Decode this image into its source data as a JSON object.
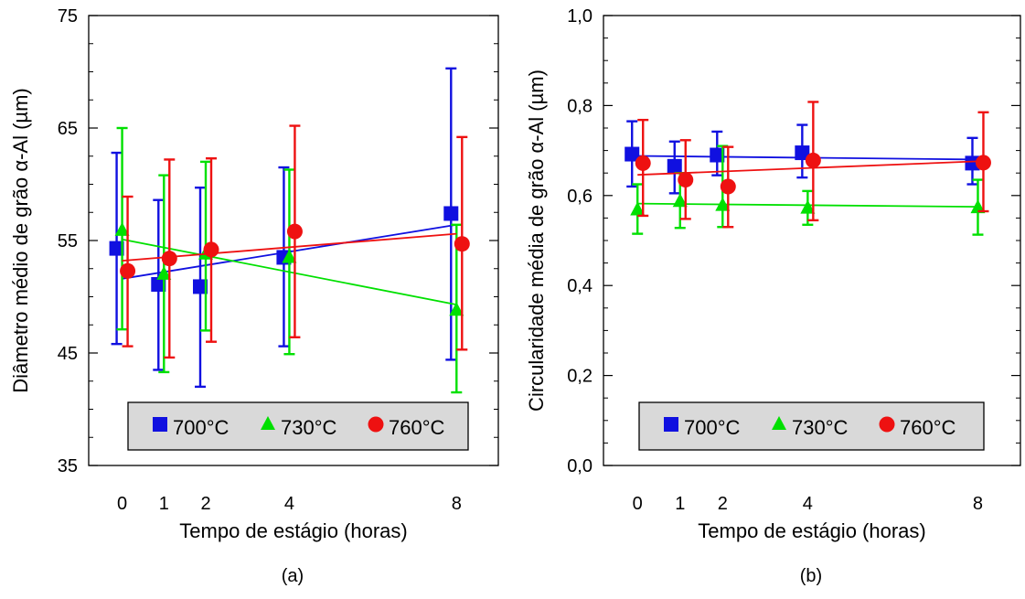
{
  "chart_data": [
    {
      "type": "scatter",
      "panel_label": "(a)",
      "title": "",
      "xlabel": "Tempo de estágio (horas)",
      "ylabel": "Diâmetro médio de grão α-Al (µm)",
      "x_ticks": [
        0,
        1,
        2,
        4,
        8
      ],
      "xlim": [
        -0.8,
        9.0
      ],
      "ylim": [
        35,
        75
      ],
      "y_ticks": [
        35,
        45,
        55,
        65,
        75
      ],
      "y_tick_labels": [
        "35",
        "45",
        "55",
        "65",
        "75"
      ],
      "legend_placement": "bottom-center",
      "trendlines": true,
      "series": [
        {
          "name": "700°C",
          "marker": "square",
          "color": "#1010e0",
          "x": [
            0,
            1,
            2,
            4,
            8
          ],
          "y": [
            54.3,
            51.1,
            50.9,
            53.5,
            57.4
          ],
          "err_low": [
            45.8,
            43.5,
            42.0,
            45.6,
            44.4
          ],
          "err_high": [
            62.8,
            58.6,
            59.7,
            61.5,
            70.3
          ],
          "trend": [
            51.6,
            56.4
          ]
        },
        {
          "name": "730°C",
          "marker": "triangle",
          "color": "#00e000",
          "x": [
            0,
            1,
            2,
            4,
            8
          ],
          "y": [
            55.9,
            52.0,
            53.8,
            53.5,
            48.8
          ],
          "err_low": [
            47.1,
            43.3,
            47.0,
            44.9,
            41.5
          ],
          "err_high": [
            65.0,
            60.8,
            62.0,
            61.3,
            56.4
          ],
          "trend": [
            55.1,
            49.3
          ]
        },
        {
          "name": "760°C",
          "marker": "circle",
          "color": "#ee1111",
          "x": [
            0,
            1,
            2,
            4,
            8
          ],
          "y": [
            52.3,
            53.4,
            54.2,
            55.8,
            54.7
          ],
          "err_low": [
            45.6,
            44.6,
            46.0,
            46.4,
            45.3
          ],
          "err_high": [
            58.9,
            62.2,
            62.3,
            65.2,
            64.2
          ],
          "trend": [
            53.2,
            55.6
          ]
        }
      ]
    },
    {
      "type": "scatter",
      "panel_label": "(b)",
      "title": "",
      "xlabel": "Tempo de estágio (horas)",
      "ylabel": "Circularidade  média de grão α-Al (µm)",
      "x_ticks": [
        0,
        1,
        2,
        4,
        8
      ],
      "xlim": [
        -0.8,
        9.0
      ],
      "ylim": [
        0,
        1
      ],
      "y_ticks": [
        0,
        0.2,
        0.4,
        0.6,
        0.8,
        1.0
      ],
      "y_tick_labels": [
        "0,0",
        "0,2",
        "0,4",
        "0,6",
        "0,8",
        "1,0"
      ],
      "legend_placement": "bottom-center",
      "trendlines": true,
      "series": [
        {
          "name": "700°C",
          "marker": "square",
          "color": "#1010e0",
          "x": [
            0,
            1,
            2,
            4,
            8
          ],
          "y": [
            0.692,
            0.665,
            0.69,
            0.695,
            0.672
          ],
          "err_low": [
            0.62,
            0.605,
            0.645,
            0.64,
            0.625
          ],
          "err_high": [
            0.765,
            0.72,
            0.742,
            0.757,
            0.728
          ],
          "trend": [
            0.688,
            0.68
          ]
        },
        {
          "name": "730°C",
          "marker": "triangle",
          "color": "#00e000",
          "x": [
            0,
            1,
            2,
            4,
            8
          ],
          "y": [
            0.568,
            0.587,
            0.578,
            0.572,
            0.573
          ],
          "err_low": [
            0.515,
            0.528,
            0.53,
            0.535,
            0.513
          ],
          "err_high": [
            0.625,
            0.65,
            0.71,
            0.61,
            0.635
          ],
          "trend": [
            0.582,
            0.575
          ]
        },
        {
          "name": "760°C",
          "marker": "circle",
          "color": "#ee1111",
          "x": [
            0,
            1,
            2,
            4,
            8
          ],
          "y": [
            0.672,
            0.635,
            0.62,
            0.678,
            0.673
          ],
          "err_low": [
            0.555,
            0.548,
            0.53,
            0.545,
            0.565
          ],
          "err_high": [
            0.768,
            0.723,
            0.708,
            0.808,
            0.785
          ],
          "trend": [
            0.646,
            0.676
          ]
        }
      ]
    }
  ]
}
